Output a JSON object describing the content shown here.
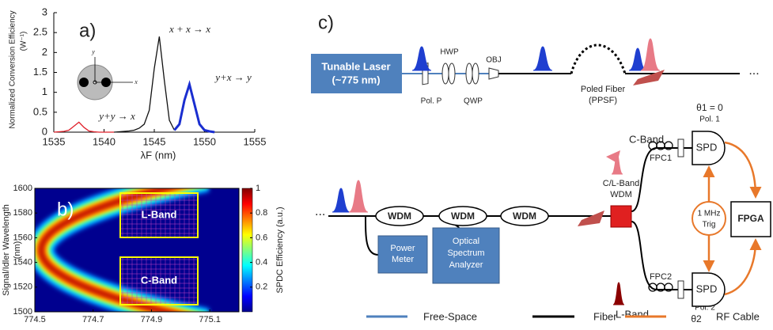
{
  "chart_data": [
    {
      "type": "line",
      "label": "a)",
      "y_label": [
        "Normalized Conversion Efficiency",
        "(W⁻¹)"
      ],
      "x_label": "λF (nm)",
      "annotations": [
        "x + x → x",
        "y+x → y",
        "y+y → x",
        "y",
        "x"
      ],
      "x": [
        1535,
        1535.5,
        1536,
        1536.5,
        1537,
        1537.5,
        1538,
        1538.5,
        1539,
        1539.5,
        1540,
        1540.5,
        1541,
        1541.5,
        1542,
        1542.5,
        1543,
        1543.5,
        1544,
        1544.5,
        1545,
        1545.5,
        1546,
        1546.5,
        1547,
        1547.5,
        1548,
        1548.5,
        1549,
        1549.5,
        1550,
        1550.5,
        1551,
        1551.5,
        1552,
        1552.5,
        1553,
        1553.5,
        1554,
        1554.5,
        1555
      ],
      "series": [
        {
          "color": "#e0202a",
          "values": [
            0,
            0.01,
            0.02,
            0.05,
            0.15,
            0.25,
            0.12,
            0.03,
            0.01,
            0,
            0,
            0,
            0,
            null,
            null,
            null,
            null,
            null,
            null,
            null,
            null,
            null,
            null,
            null,
            null,
            null,
            null,
            null,
            null,
            null,
            null,
            null,
            null,
            null,
            null,
            null,
            null,
            null,
            null,
            null,
            null
          ]
        },
        {
          "color": "#111111",
          "values": [
            null,
            null,
            null,
            null,
            null,
            null,
            null,
            null,
            null,
            null,
            null,
            null,
            0,
            0.01,
            0.02,
            0.03,
            0.05,
            0.1,
            0.2,
            0.55,
            1.6,
            2.4,
            1.3,
            0.3,
            0.05,
            null,
            null,
            null,
            null,
            null,
            null,
            null,
            null,
            null,
            null,
            null,
            null,
            null,
            null,
            null,
            null
          ]
        },
        {
          "color": "#1a2ed0",
          "values": [
            null,
            null,
            null,
            null,
            null,
            null,
            null,
            null,
            null,
            null,
            null,
            null,
            null,
            null,
            null,
            null,
            null,
            null,
            null,
            null,
            null,
            null,
            null,
            null,
            0.05,
            0.2,
            0.8,
            1.2,
            0.7,
            0.2,
            0.05,
            0.02,
            0,
            null,
            null,
            null,
            null,
            null,
            null,
            null,
            null
          ]
        }
      ],
      "xlim": [
        1535,
        1555
      ],
      "xticks": [
        1535,
        1540,
        1545,
        1550,
        1555
      ],
      "ylim": [
        0,
        3
      ],
      "yticks": [
        0,
        0.5,
        1,
        1.5,
        2,
        2.5,
        3
      ]
    },
    {
      "type": "heatmap",
      "label": "b)",
      "regions": [
        "L-Band",
        "C-Band"
      ],
      "y_label": [
        "Signal/Idler Wavelength",
        "(nm)"
      ],
      "xlim": [
        774.5,
        775.2
      ],
      "xticks": [
        774.5,
        774.7,
        774.9,
        775.1
      ],
      "ylim": [
        1500,
        1600
      ],
      "yticks": [
        1500,
        1520,
        1540,
        1560,
        1580,
        1600
      ],
      "colorbar": {
        "label": "SPDC Efficiency (a.u.)",
        "lim": [
          0,
          1
        ],
        "ticks": [
          0.2,
          0.4,
          0.6,
          0.8,
          1
        ]
      }
    }
  ],
  "diagram": {
    "label": "c)",
    "laser": [
      "Tunable Laser",
      "(~775 nm)"
    ],
    "pol_p": "Pol. P",
    "hwp": "HWP",
    "qwp": "QWP",
    "obj": "OBJ",
    "poled_fiber": [
      "Poled Fiber",
      "(PPSF)"
    ],
    "ellipses": [
      "...",
      "..."
    ],
    "wdms": [
      "WDM",
      "WDM",
      "WDM"
    ],
    "cl_wdm": [
      "C/L-Band",
      "WDM"
    ],
    "power_meter": [
      "Power",
      "Meter"
    ],
    "osa": [
      "Optical",
      "Spectrum",
      "Analyzer"
    ],
    "c_band": "C-Band",
    "l_band": "L-Band",
    "fpc1": "FPC1",
    "fpc2": "FPC2",
    "theta1": "θ1 = 0",
    "pol1": "Pol. 1",
    "pol2": "Pol. 2",
    "theta2": "θ2",
    "spd": [
      "SPD",
      "SPD"
    ],
    "trig": [
      "1 MHz",
      "Trig"
    ],
    "fpga": "FPGA",
    "legend": [
      "Free-Space",
      "Fiber",
      "RF Cable"
    ]
  }
}
